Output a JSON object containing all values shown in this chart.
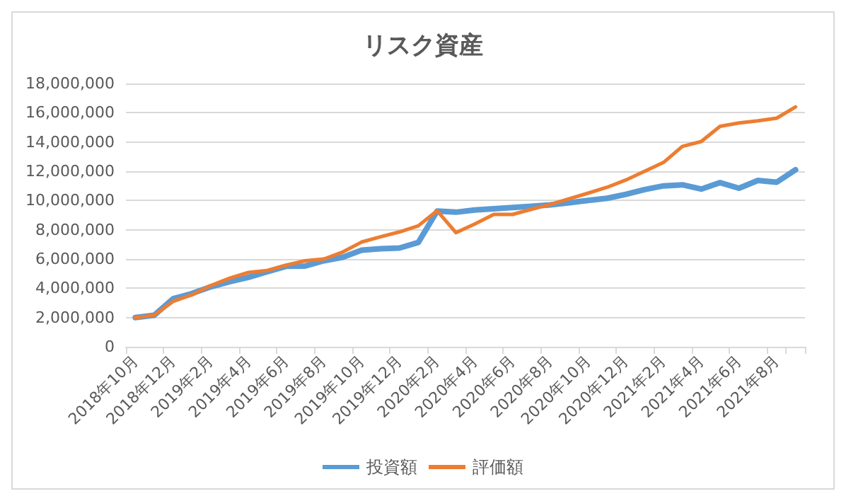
{
  "chart_data": {
    "type": "line",
    "title": "リスク資産",
    "categories": [
      "2018年10月",
      null,
      "2018年12月",
      null,
      "2019年2月",
      null,
      "2019年4月",
      null,
      "2019年6月",
      null,
      "2019年8月",
      null,
      "2019年10月",
      null,
      "2019年12月",
      null,
      "2020年2月",
      null,
      "2020年4月",
      null,
      "2020年6月",
      null,
      "2020年8月",
      null,
      "2020年10月",
      null,
      "2020年12月",
      null,
      "2021年2月",
      null,
      "2021年4月",
      null,
      "2021年6月",
      null,
      "2021年8月",
      null
    ],
    "series": [
      {
        "name": "投資額",
        "color": "#5b9bd5",
        "values": [
          2000000,
          2150000,
          3280000,
          3640000,
          4100000,
          4450000,
          4750000,
          5130000,
          5500000,
          5520000,
          5880000,
          6120000,
          6600000,
          6700000,
          6750000,
          7130000,
          9280000,
          9200000,
          9350000,
          9430000,
          9520000,
          9600000,
          9700000,
          9850000,
          10000000,
          10150000,
          10420000,
          10750000,
          11000000,
          11070000,
          10780000,
          11220000,
          10840000,
          11370000,
          11250000,
          12100000
        ]
      },
      {
        "name": "評価額",
        "color": "#ed7d31",
        "values": [
          2000000,
          2150000,
          3100000,
          3550000,
          4180000,
          4690000,
          5080000,
          5220000,
          5580000,
          5880000,
          6000000,
          6480000,
          7160000,
          7520000,
          7850000,
          8270000,
          9300000,
          7800000,
          8400000,
          9050000,
          9050000,
          9400000,
          9730000,
          10120000,
          10500000,
          10900000,
          11400000,
          12000000,
          12600000,
          13700000,
          14030000,
          15070000,
          15300000,
          15450000,
          15630000,
          16400000
        ]
      }
    ],
    "ylim": [
      0,
      18000000
    ],
    "yticks": [
      {
        "value": 0,
        "label": "0"
      },
      {
        "value": 2000000,
        "label": "2,000,000"
      },
      {
        "value": 4000000,
        "label": "4,000,000"
      },
      {
        "value": 6000000,
        "label": "6,000,000"
      },
      {
        "value": 8000000,
        "label": "8,000,000"
      },
      {
        "value": 10000000,
        "label": "10,000,000"
      },
      {
        "value": 12000000,
        "label": "12,000,000"
      },
      {
        "value": 14000000,
        "label": "14,000,000"
      },
      {
        "value": 16000000,
        "label": "16,000,000"
      },
      {
        "value": 18000000,
        "label": "18,000,000"
      }
    ],
    "grid": "y",
    "legend": "bottom",
    "marker": "none",
    "line_style": "solid"
  }
}
